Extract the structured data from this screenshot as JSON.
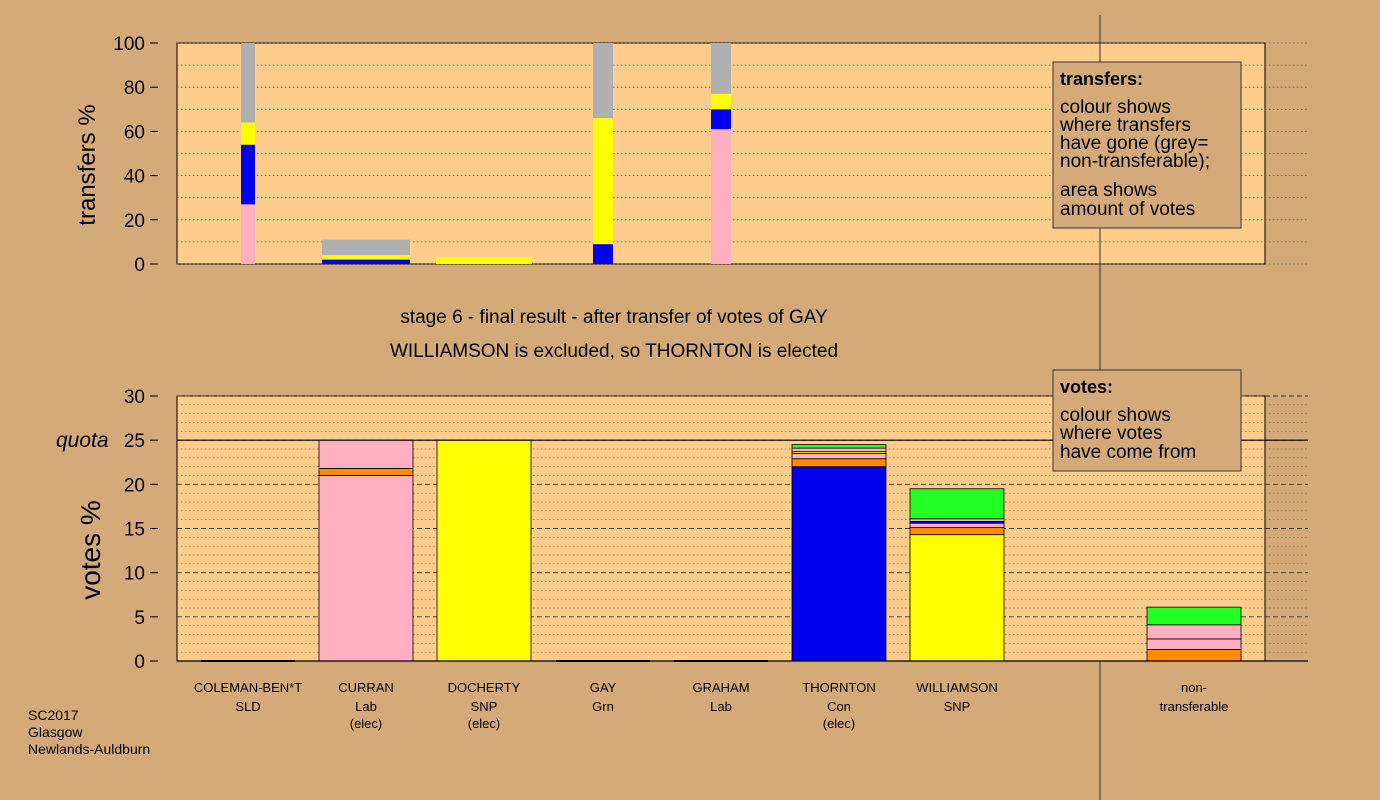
{
  "colors": {
    "background": "#d4aa78",
    "panel": "#ffcc8c",
    "pink": "#ffb0c0",
    "blue": "#0000ee",
    "yellow": "#ffff00",
    "orange": "#ff8c00",
    "green": "#22ff22",
    "grey": "#b0b0b0"
  },
  "stage_title": "stage 6 - final result - after transfer of votes of GAY",
  "stage_subtitle": "WILLIAMSON is excluded, so THORNTON is elected",
  "footer": {
    "line1": "SC2017",
    "line2": "Glasgow",
    "line3": "Newlands-Auldburn"
  },
  "transfers_legend": {
    "title": "transfers:",
    "lines": [
      "colour shows",
      "where transfers",
      "have gone (grey=",
      "non-transferable);",
      "area shows",
      "amount of votes"
    ]
  },
  "votes_legend": {
    "title": "votes:",
    "lines": [
      "colour shows",
      "where votes",
      "have come from"
    ]
  },
  "quota_label": "quota",
  "candidates": [
    {
      "name": "COLEMAN-BEN*T",
      "party": "SLD",
      "status": ""
    },
    {
      "name": "CURRAN",
      "party": "Lab",
      "status": "(elec)"
    },
    {
      "name": "DOCHERTY",
      "party": "SNP",
      "status": "(elec)"
    },
    {
      "name": "GAY",
      "party": "Grn",
      "status": ""
    },
    {
      "name": "GRAHAM",
      "party": "Lab",
      "status": ""
    },
    {
      "name": "THORNTON",
      "party": "Con",
      "status": "(elec)"
    },
    {
      "name": "WILLIAMSON",
      "party": "SNP",
      "status": ""
    },
    {
      "name": "non-",
      "party": "transferable",
      "status": ""
    }
  ],
  "chart_data": [
    {
      "type": "bar",
      "stacked": true,
      "ylabel": "transfers %",
      "ylim": [
        0,
        100
      ],
      "yticks": [
        0,
        20,
        40,
        60,
        80,
        100
      ],
      "bars": [
        {
          "stack": [
            {
              "color": "pink",
              "value": 27
            },
            {
              "color": "blue",
              "value": 27
            },
            {
              "color": "yellow",
              "value": 10
            },
            {
              "color": "grey",
              "value": 36
            }
          ]
        },
        {
          "stack": [
            {
              "color": "blue",
              "value": 2
            },
            {
              "color": "yellow",
              "value": 2
            },
            {
              "color": "grey",
              "value": 7
            }
          ]
        },
        {
          "stack": [
            {
              "color": "yellow",
              "value": 3
            }
          ]
        },
        {
          "stack": [
            {
              "color": "blue",
              "value": 9
            },
            {
              "color": "yellow",
              "value": 57
            },
            {
              "color": "grey",
              "value": 34
            }
          ]
        },
        {
          "stack": [
            {
              "color": "pink",
              "value": 61
            },
            {
              "color": "blue",
              "value": 9
            },
            {
              "color": "yellow",
              "value": 7
            },
            {
              "color": "grey",
              "value": 23
            }
          ]
        }
      ]
    },
    {
      "type": "bar",
      "stacked": true,
      "ylabel": "votes %",
      "ylim": [
        0,
        30
      ],
      "yticks": [
        0,
        5,
        10,
        15,
        20,
        25,
        30
      ],
      "quota": 25,
      "bars": [
        {
          "stack": []
        },
        {
          "stack": [
            {
              "color": "pink",
              "value": 21
            },
            {
              "color": "orange",
              "value": 0.8
            },
            {
              "color": "pink",
              "value": 3.2
            }
          ]
        },
        {
          "stack": [
            {
              "color": "yellow",
              "value": 25
            }
          ]
        },
        {
          "stack": []
        },
        {
          "stack": []
        },
        {
          "stack": [
            {
              "color": "blue",
              "value": 22
            },
            {
              "color": "orange",
              "value": 0.9
            },
            {
              "color": "pink",
              "value": 0.6
            },
            {
              "color": "yellow",
              "value": 0.2
            },
            {
              "color": "pink",
              "value": 0.4
            },
            {
              "color": "green",
              "value": 0.4
            }
          ]
        },
        {
          "stack": [
            {
              "color": "yellow",
              "value": 14.3
            },
            {
              "color": "orange",
              "value": 0.8
            },
            {
              "color": "pink",
              "value": 0.5
            },
            {
              "color": "blue",
              "value": 0.2
            },
            {
              "color": "pink",
              "value": 0.3
            },
            {
              "color": "green",
              "value": 3.4
            }
          ]
        },
        {
          "stack": [
            {
              "color": "orange",
              "value": 1.3
            },
            {
              "color": "pink",
              "value": 1.2
            },
            {
              "color": "pink",
              "value": 1.6
            },
            {
              "color": "green",
              "value": 2.0
            }
          ]
        }
      ]
    }
  ]
}
